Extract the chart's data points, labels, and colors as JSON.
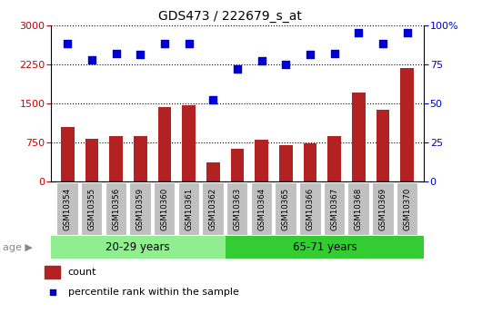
{
  "title": "GDS473 / 222679_s_at",
  "categories": [
    "GSM10354",
    "GSM10355",
    "GSM10356",
    "GSM10359",
    "GSM10360",
    "GSM10361",
    "GSM10362",
    "GSM10363",
    "GSM10364",
    "GSM10365",
    "GSM10366",
    "GSM10367",
    "GSM10368",
    "GSM10369",
    "GSM10370"
  ],
  "counts": [
    1050,
    820,
    880,
    870,
    1430,
    1460,
    370,
    620,
    800,
    690,
    740,
    870,
    1700,
    1370,
    2175
  ],
  "percentiles": [
    88,
    78,
    82,
    81,
    88,
    88,
    52,
    72,
    77,
    75,
    81,
    82,
    95,
    88,
    95
  ],
  "group1_label": "20-29 years",
  "group2_label": "65-71 years",
  "group1_count": 7,
  "group2_count": 8,
  "bar_color": "#B22222",
  "dot_color": "#0000CC",
  "group1_bg": "#90EE90",
  "group2_bg": "#33CC33",
  "ylim_left": [
    0,
    3000
  ],
  "ylim_right": [
    0,
    100
  ],
  "yticks_left": [
    0,
    750,
    1500,
    2250,
    3000
  ],
  "yticks_right": [
    0,
    25,
    50,
    75,
    100
  ],
  "ylabel_left_color": "#CC0000",
  "ylabel_right_color": "#0000CC",
  "age_label": "age",
  "legend_count_label": "count",
  "legend_pct_label": "percentile rank within the sample",
  "xlabel_bg": "#C0C0C0"
}
